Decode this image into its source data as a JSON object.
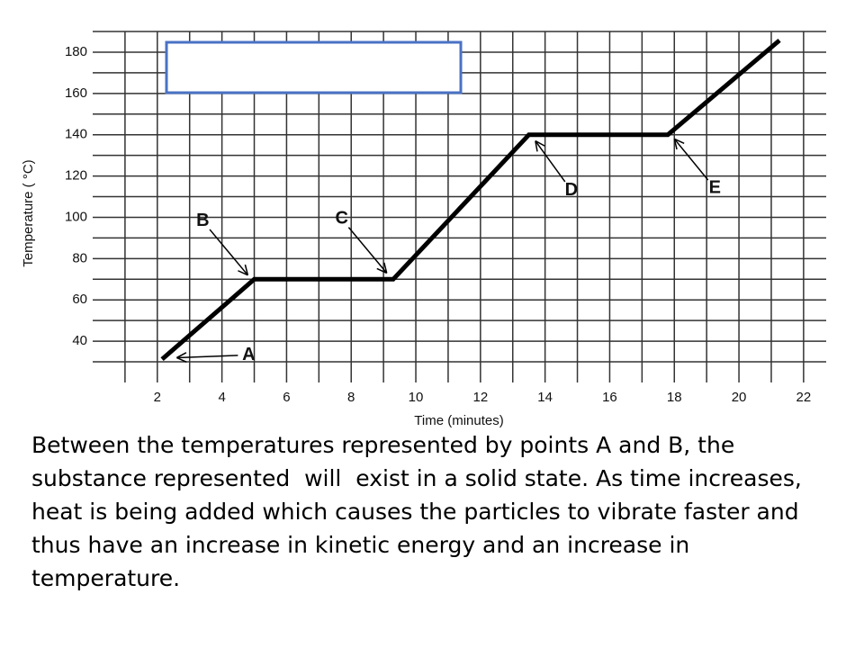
{
  "chart_data": {
    "type": "line",
    "x": [
      2.2,
      5,
      9.3,
      13.5,
      17.8,
      21.2
    ],
    "values": [
      32,
      70,
      70,
      140,
      140,
      185
    ],
    "color": "#000000",
    "xlabel": "Time (minutes)",
    "ylabel": "Temperature ( °C)",
    "xlim": [
      0,
      22.7
    ],
    "ylim": [
      20,
      190
    ],
    "xticks": [
      2,
      4,
      6,
      8,
      10,
      12,
      14,
      16,
      18,
      20,
      22
    ],
    "yticks": [
      40,
      60,
      80,
      100,
      120,
      140,
      160,
      180
    ],
    "xminor": [
      1,
      3,
      5,
      7,
      9,
      11,
      13,
      15,
      17,
      19,
      21
    ],
    "yminor": [
      30,
      50,
      70,
      90,
      110,
      130,
      150,
      170,
      190
    ],
    "grid": true,
    "annotations": [
      {
        "text": "A",
        "x": 2.6,
        "y": 32
      },
      {
        "text": "B",
        "x": 4.8,
        "y": 72
      },
      {
        "text": "C",
        "x": 9.1,
        "y": 73
      },
      {
        "text": "D",
        "x": 13.7,
        "y": 137
      },
      {
        "text": "E",
        "x": 18,
        "y": 138
      }
    ]
  },
  "caption": "Between the temperatures represented by points A and B, the substance represented  will  exist in a solid state. As time increases, heat is being added which causes the particles to vibrate faster and thus have an increase in kinetic energy and an increase in temperature."
}
